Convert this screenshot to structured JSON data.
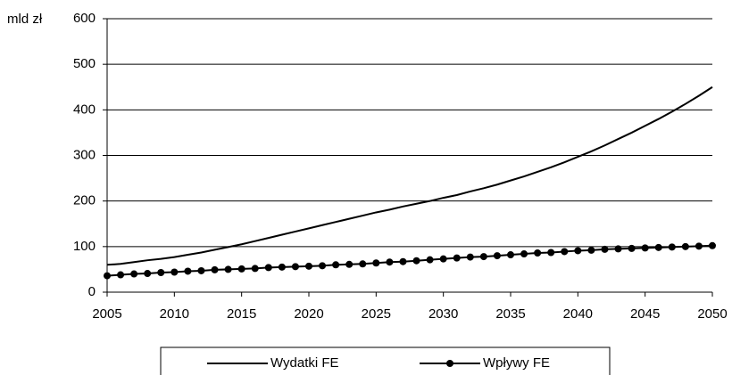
{
  "chart_data": {
    "type": "line",
    "y_label": "mld zł",
    "x": [
      2005,
      2006,
      2007,
      2008,
      2009,
      2010,
      2011,
      2012,
      2013,
      2014,
      2015,
      2016,
      2017,
      2018,
      2019,
      2020,
      2021,
      2022,
      2023,
      2024,
      2025,
      2026,
      2027,
      2028,
      2029,
      2030,
      2031,
      2032,
      2033,
      2034,
      2035,
      2036,
      2037,
      2038,
      2039,
      2040,
      2041,
      2042,
      2043,
      2044,
      2045,
      2046,
      2047,
      2048,
      2049,
      2050
    ],
    "series": [
      {
        "name": "Wydatki FE",
        "color": "#000000",
        "marker": false,
        "values": [
          60,
          62,
          66,
          70,
          73,
          77,
          82,
          87,
          93,
          99,
          105,
          112,
          119,
          126,
          133,
          140,
          147,
          154,
          161,
          168,
          175,
          181,
          188,
          194,
          200,
          207,
          213,
          221,
          228,
          236,
          245,
          254,
          264,
          274,
          285,
          297,
          309,
          322,
          336,
          350,
          365,
          380,
          396,
          413,
          431,
          450
        ]
      },
      {
        "name": "Wpływy FE",
        "color": "#000000",
        "marker": true,
        "values": [
          36,
          38,
          40,
          41,
          43,
          44,
          46,
          47,
          49,
          50,
          51,
          52,
          54,
          55,
          56,
          57,
          58,
          60,
          61,
          62,
          64,
          66,
          67,
          69,
          71,
          73,
          75,
          77,
          78,
          80,
          82,
          84,
          86,
          87,
          89,
          91,
          92,
          94,
          95,
          96,
          97,
          98,
          99,
          100,
          101,
          102
        ]
      }
    ],
    "xlim": [
      2005,
      2050
    ],
    "xticks": [
      2005,
      2010,
      2015,
      2020,
      2025,
      2030,
      2035,
      2040,
      2045,
      2050
    ],
    "ylim": [
      0,
      600
    ],
    "yticks": [
      0,
      100,
      200,
      300,
      400,
      500,
      600
    ],
    "grid": true,
    "legend": "bottom"
  }
}
